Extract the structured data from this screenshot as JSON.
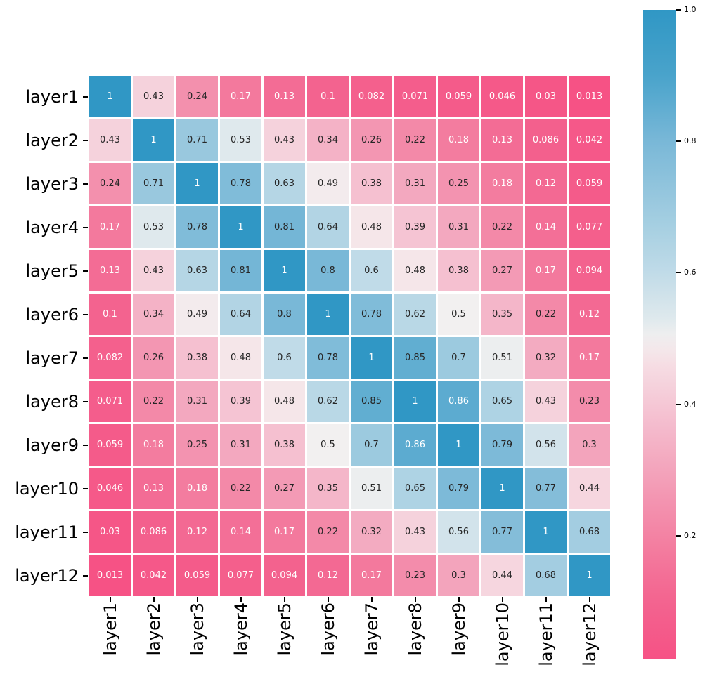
{
  "chart_data": {
    "type": "heatmap",
    "title": "",
    "xlabel": "",
    "ylabel": "",
    "x_categories": [
      "layer1",
      "layer2",
      "layer3",
      "layer4",
      "layer5",
      "layer6",
      "layer7",
      "layer8",
      "layer9",
      "layer10",
      "layer11",
      "layer12"
    ],
    "y_categories": [
      "layer1",
      "layer2",
      "layer3",
      "layer4",
      "layer5",
      "layer6",
      "layer7",
      "layer8",
      "layer9",
      "layer10",
      "layer11",
      "layer12"
    ],
    "matrix": [
      [
        1,
        0.43,
        0.24,
        0.17,
        0.13,
        0.1,
        0.082,
        0.071,
        0.059,
        0.046,
        0.03,
        0.013
      ],
      [
        0.43,
        1,
        0.71,
        0.53,
        0.43,
        0.34,
        0.26,
        0.22,
        0.18,
        0.13,
        0.086,
        0.042
      ],
      [
        0.24,
        0.71,
        1,
        0.78,
        0.63,
        0.49,
        0.38,
        0.31,
        0.25,
        0.18,
        0.12,
        0.059
      ],
      [
        0.17,
        0.53,
        0.78,
        1,
        0.81,
        0.64,
        0.48,
        0.39,
        0.31,
        0.22,
        0.14,
        0.077
      ],
      [
        0.13,
        0.43,
        0.63,
        0.81,
        1,
        0.8,
        0.6,
        0.48,
        0.38,
        0.27,
        0.17,
        0.094
      ],
      [
        0.1,
        0.34,
        0.49,
        0.64,
        0.8,
        1,
        0.78,
        0.62,
        0.5,
        0.35,
        0.22,
        0.12
      ],
      [
        0.082,
        0.26,
        0.38,
        0.48,
        0.6,
        0.78,
        1,
        0.85,
        0.7,
        0.51,
        0.32,
        0.17
      ],
      [
        0.071,
        0.22,
        0.31,
        0.39,
        0.48,
        0.62,
        0.85,
        1,
        0.86,
        0.65,
        0.43,
        0.23
      ],
      [
        0.059,
        0.18,
        0.25,
        0.31,
        0.38,
        0.5,
        0.7,
        0.86,
        1,
        0.79,
        0.56,
        0.3
      ],
      [
        0.046,
        0.13,
        0.18,
        0.22,
        0.27,
        0.35,
        0.51,
        0.65,
        0.79,
        1,
        0.77,
        0.44
      ],
      [
        0.03,
        0.086,
        0.12,
        0.14,
        0.17,
        0.22,
        0.32,
        0.43,
        0.56,
        0.77,
        1,
        0.68
      ],
      [
        0.013,
        0.042,
        0.059,
        0.077,
        0.094,
        0.12,
        0.17,
        0.23,
        0.3,
        0.44,
        0.68,
        1
      ]
    ],
    "annotations_shown": true,
    "value_format": "2 significant digits",
    "vmin": 0.013,
    "vmax": 1.0,
    "grid_line_color": "#ffffff",
    "annotation_text_colors": {
      "dark": "#262626",
      "light": "#ffffff"
    },
    "light_text_rule": {
      "low_max": 0.19,
      "high_min": 0.855
    },
    "colormap": {
      "name": "diverging-pink-white-blue",
      "stops": [
        {
          "v": 0.0,
          "color": "#f65084"
        },
        {
          "v": 0.1,
          "color": "#f3638f"
        },
        {
          "v": 0.2,
          "color": "#f382a3"
        },
        {
          "v": 0.3,
          "color": "#f3a4bc"
        },
        {
          "v": 0.4,
          "color": "#f5c7d5"
        },
        {
          "v": 0.47,
          "color": "#f6e1e6"
        },
        {
          "v": 0.5,
          "color": "#f2f0f0"
        },
        {
          "v": 0.53,
          "color": "#dfe9ed"
        },
        {
          "v": 0.6,
          "color": "#c0dbe8"
        },
        {
          "v": 0.7,
          "color": "#9ccadf"
        },
        {
          "v": 0.8,
          "color": "#79b8d7"
        },
        {
          "v": 0.9,
          "color": "#49a3cb"
        },
        {
          "v": 1.0,
          "color": "#3097c5"
        }
      ]
    },
    "colorbar": {
      "position": "right",
      "ticks": [
        1.0,
        0.8,
        0.6,
        0.4,
        0.2
      ],
      "tick_labels": [
        "1.0",
        "0.8",
        "0.6",
        "0.4",
        "0.2"
      ]
    },
    "legend": "none",
    "axes": {
      "x_tick_rotation_deg": 90,
      "y_tick_rotation_deg": 0
    }
  }
}
